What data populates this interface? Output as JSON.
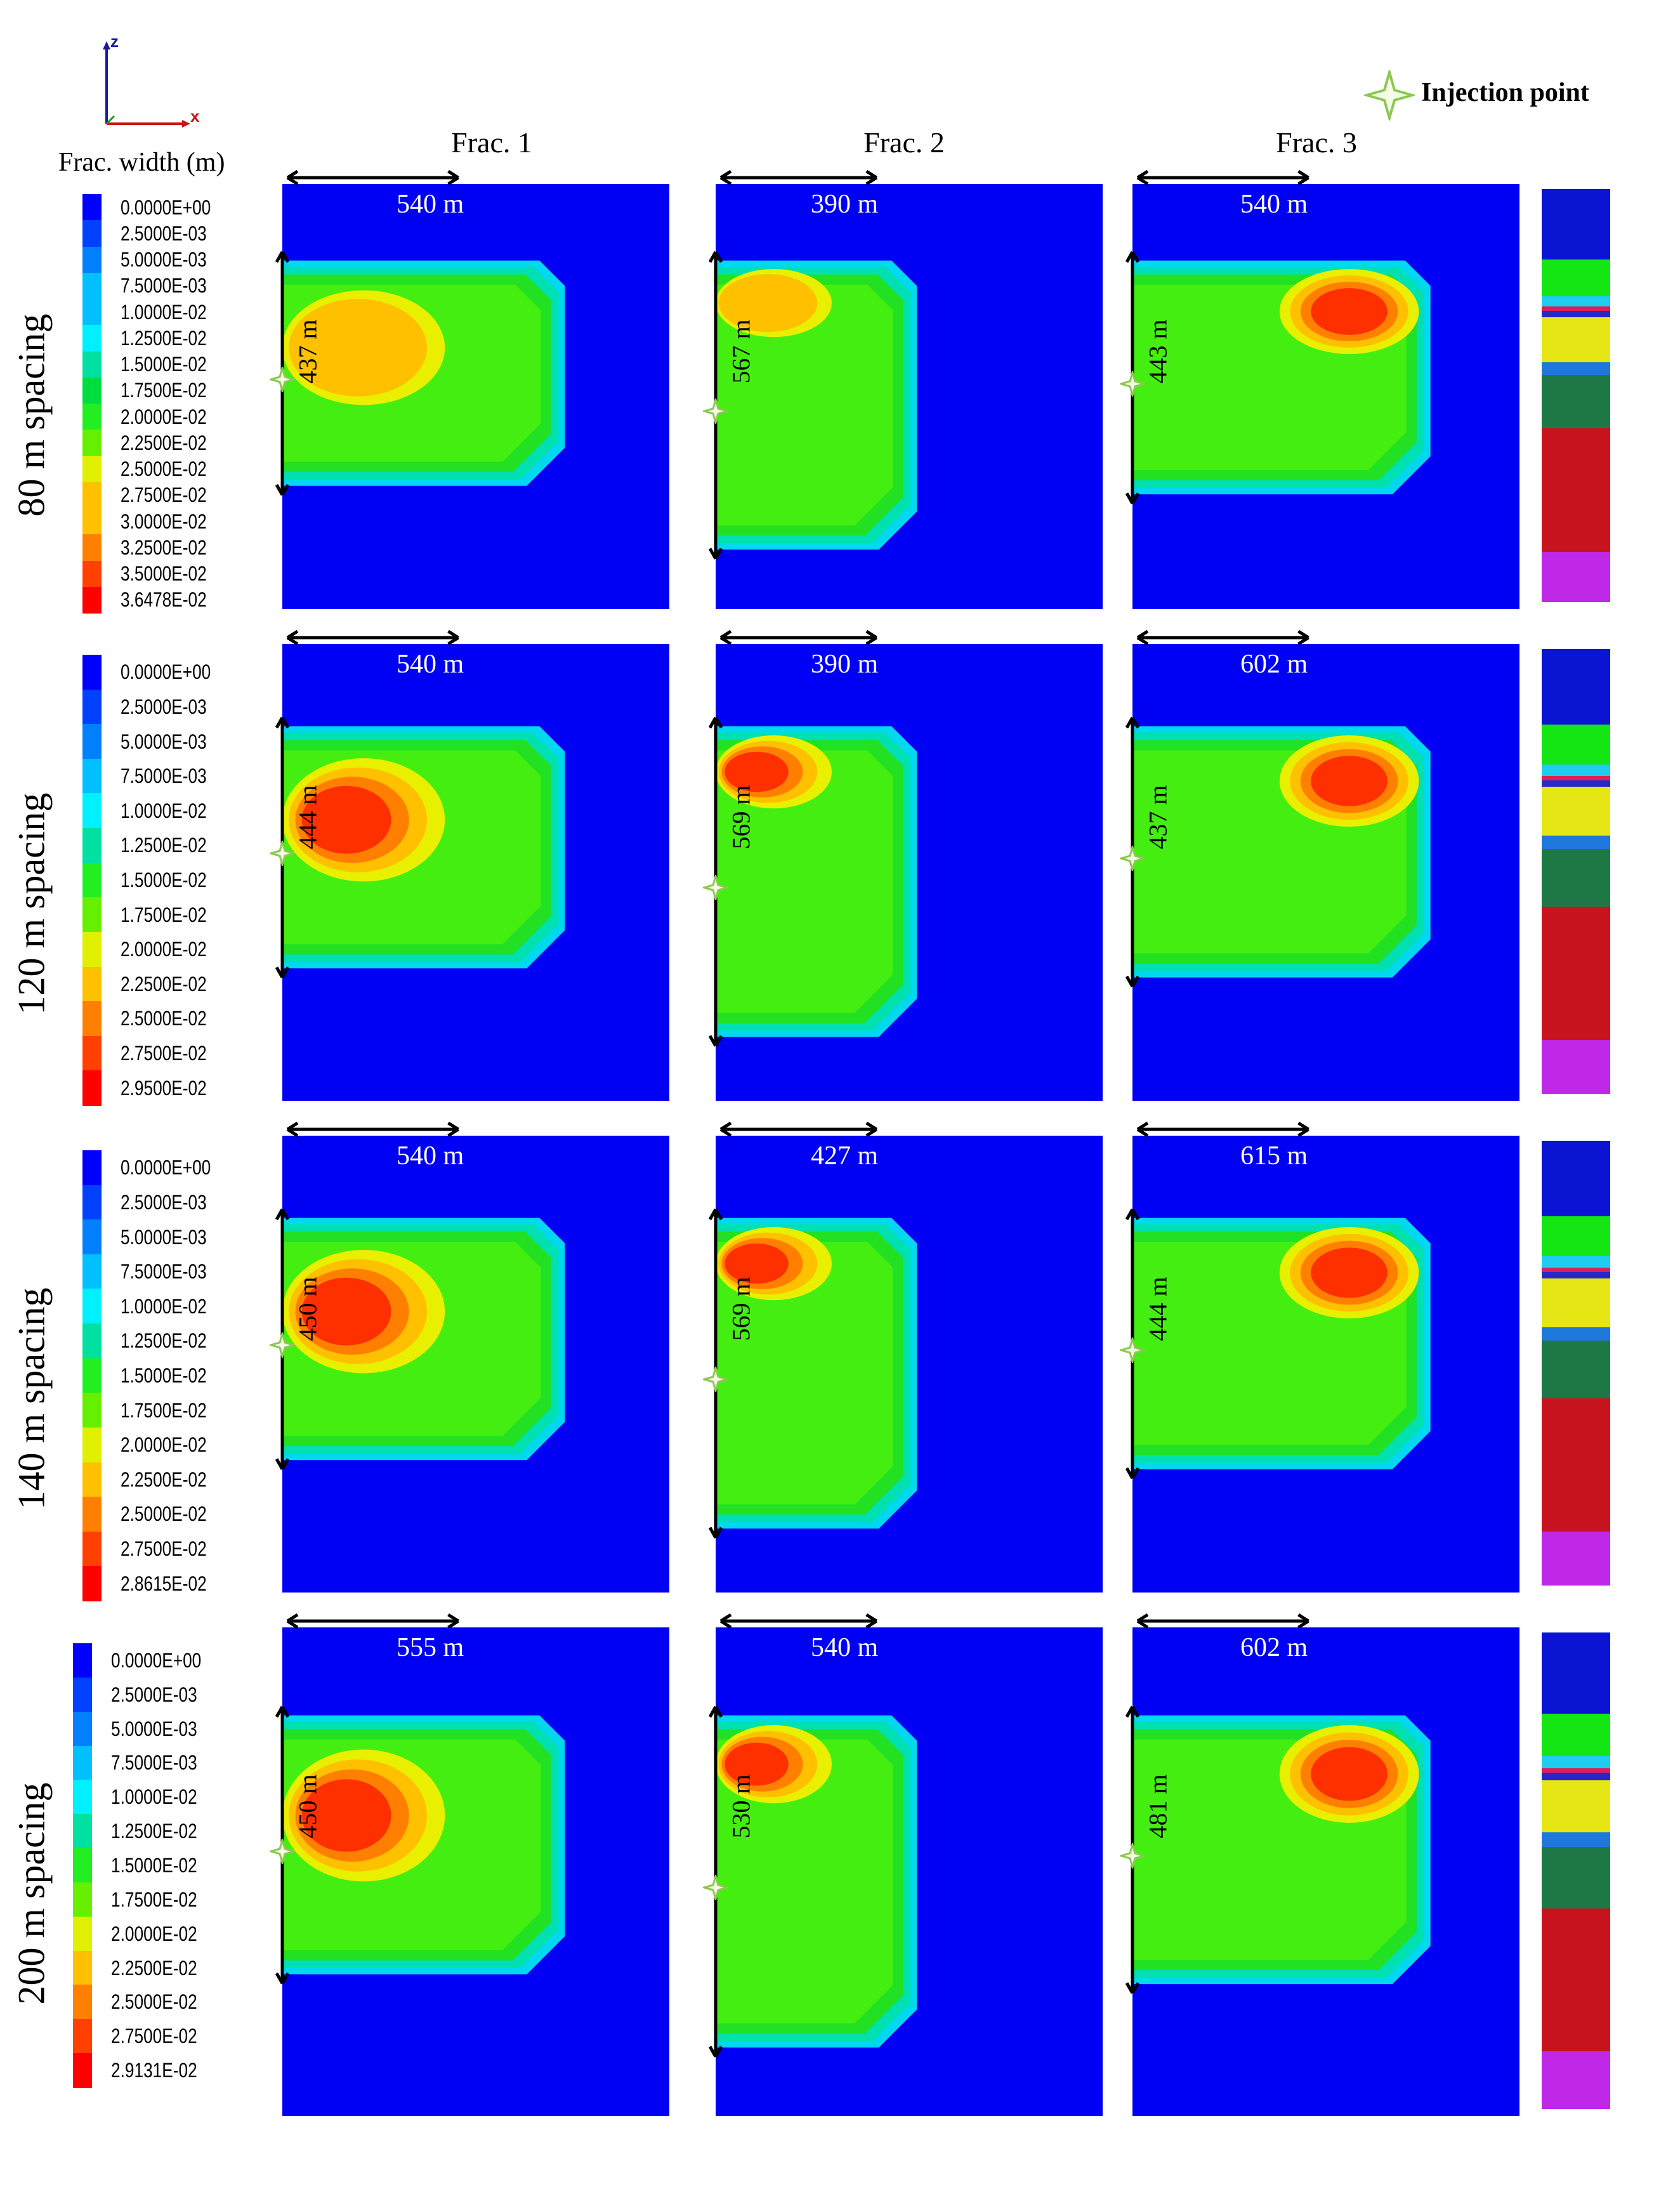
{
  "axes_triad": {
    "z_label": "z",
    "x_label": "x"
  },
  "legend_key": {
    "label": "Injection point",
    "icon": "star-icon",
    "color": "#9ccc65"
  },
  "legend_title": "Frac. width (m)",
  "columns": [
    "Frac. 1",
    "Frac. 2",
    "Frac. 3"
  ],
  "colormap": [
    "#0000ff",
    "#0040ff",
    "#0080ff",
    "#00c0ff",
    "#00f0ff",
    "#00e0a0",
    "#00dd40",
    "#22ee22",
    "#66f000",
    "#e0f000",
    "#ffc000",
    "#ff8000",
    "#ff4000",
    "#ff0000"
  ],
  "rows": [
    {
      "label": "80 m spacing",
      "legend_values": [
        "0.0000E+00",
        "2.5000E-03",
        "5.0000E-03",
        "7.5000E-03",
        "1.0000E-02",
        "1.2500E-02",
        "1.5000E-02",
        "1.7500E-02",
        "2.0000E-02",
        "2.2500E-02",
        "2.5000E-02",
        "2.7500E-02",
        "3.0000E-02",
        "3.2500E-02",
        "3.5000E-02",
        "3.6478E-02"
      ],
      "fracs": [
        {
          "length": "540 m",
          "height": "437 m"
        },
        {
          "length": "390 m",
          "height": "567 m"
        },
        {
          "length": "540 m",
          "height": "443 m"
        }
      ]
    },
    {
      "label": "120 m spacing",
      "legend_values": [
        "0.0000E+00",
        "2.5000E-03",
        "5.0000E-03",
        "7.5000E-03",
        "1.0000E-02",
        "1.2500E-02",
        "1.5000E-02",
        "1.7500E-02",
        "2.0000E-02",
        "2.2500E-02",
        "2.5000E-02",
        "2.7500E-02",
        "2.9500E-02"
      ],
      "fracs": [
        {
          "length": "540 m",
          "height": "444 m"
        },
        {
          "length": "390 m",
          "height": "569 m"
        },
        {
          "length": "602 m",
          "height": "437 m"
        }
      ]
    },
    {
      "label": "140 m spacing",
      "legend_values": [
        "0.0000E+00",
        "2.5000E-03",
        "5.0000E-03",
        "7.5000E-03",
        "1.0000E-02",
        "1.2500E-02",
        "1.5000E-02",
        "1.7500E-02",
        "2.0000E-02",
        "2.2500E-02",
        "2.5000E-02",
        "2.7500E-02",
        "2.8615E-02"
      ],
      "fracs": [
        {
          "length": "540 m",
          "height": "450 m"
        },
        {
          "length": "427 m",
          "height": "569 m"
        },
        {
          "length": "615 m",
          "height": "444 m"
        }
      ]
    },
    {
      "label": "200 m spacing",
      "legend_values": [
        "0.0000E+00",
        "2.5000E-03",
        "5.0000E-03",
        "7.5000E-03",
        "1.0000E-02",
        "1.2500E-02",
        "1.5000E-02",
        "1.7500E-02",
        "2.0000E-02",
        "2.2500E-02",
        "2.5000E-02",
        "2.7500E-02",
        "2.9131E-02"
      ],
      "fracs": [
        {
          "length": "555 m",
          "height": "450 m"
        },
        {
          "length": "540 m",
          "height": "530 m"
        },
        {
          "length": "602 m",
          "height": "481 m"
        }
      ]
    }
  ],
  "layer_colors": [
    "#0a14d2",
    "#14e614",
    "#1ecdf0",
    "#dc1e5a",
    "#2828c8",
    "#e6e614",
    "#1e78dc",
    "#1e7846",
    "#c8141e",
    "#be28e6"
  ]
}
